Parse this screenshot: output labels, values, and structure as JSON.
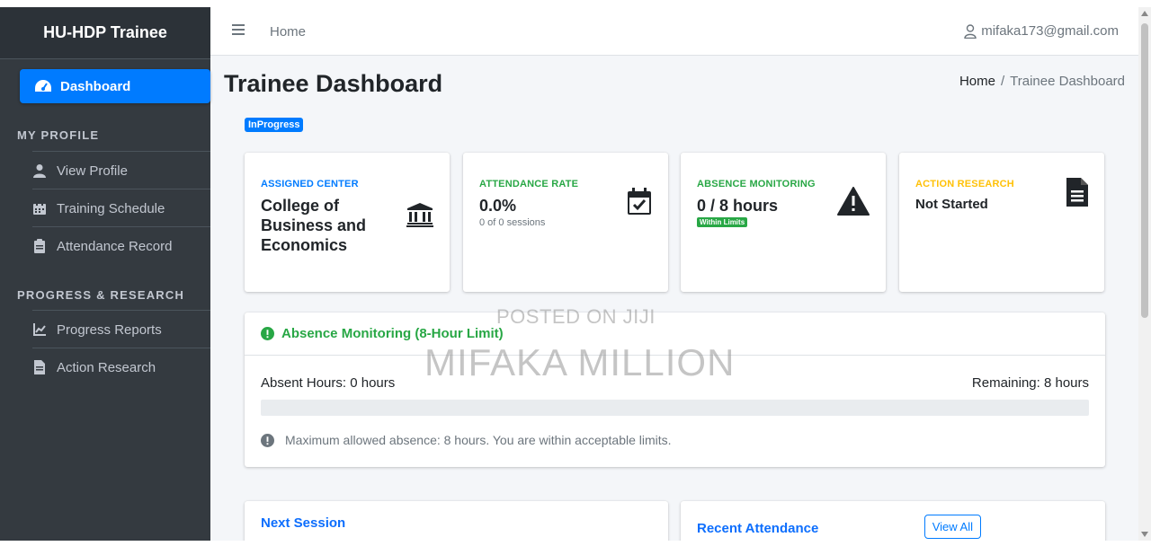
{
  "sidebar": {
    "brand": "HU-HDP Trainee",
    "active_item": "Dashboard",
    "section_profile": "MY PROFILE",
    "profile_items": [
      "View Profile",
      "Training Schedule",
      "Attendance Record"
    ],
    "section_progress": "PROGRESS & RESEARCH",
    "progress_items": [
      "Progress Reports",
      "Action Research"
    ]
  },
  "topbar": {
    "home_link": "Home",
    "user_email": "mifaka173@gmail.com"
  },
  "header": {
    "title": "Trainee Dashboard",
    "breadcrumb_home": "Home",
    "breadcrumb_sep": "/",
    "breadcrumb_current": "Trainee Dashboard",
    "status_badge": "InProgress"
  },
  "info_boxes": [
    {
      "label": "ASSIGNED CENTER",
      "value": "College of Business and Economics",
      "label_color": "#007bff",
      "icon": "university-icon"
    },
    {
      "label": "ATTENDANCE RATE",
      "value": "0.0%",
      "sub": "0 of 0 sessions",
      "label_color": "#28a745",
      "icon": "calendar-check-icon"
    },
    {
      "label": "ABSENCE MONITORING",
      "value": "0 / 8 hours",
      "badge": "Within Limits",
      "label_color": "#28a745",
      "icon": "warning-icon"
    },
    {
      "label": "ACTION RESEARCH",
      "value": "Not Started",
      "label_color": "#ffc107",
      "icon": "document-icon"
    }
  ],
  "absence_card": {
    "title": "Absence Monitoring (8-Hour Limit)",
    "absent_hours": "Absent Hours: 0 hours",
    "remaining": "Remaining: 8 hours",
    "progress_fraction": 0,
    "note": "Maximum allowed absence: 8 hours. You are within acceptable limits."
  },
  "next_session": {
    "title": "Next Session"
  },
  "recent_attendance": {
    "title": "Recent Attendance",
    "view_all": "View All"
  },
  "watermark": {
    "line1": "POSTED ON JIJI",
    "line2": "MIFAKA MILLION"
  },
  "colors": {
    "accent": "#007bff",
    "success": "#28a745",
    "warning": "#ffc107",
    "sidebar": "#343a40"
  }
}
